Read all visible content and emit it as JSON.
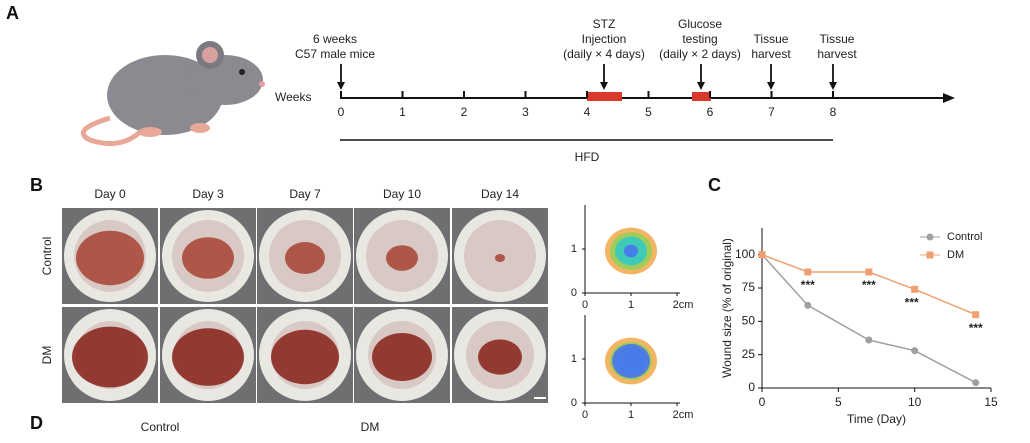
{
  "panel_a": {
    "label": "A",
    "weeks_label": "Weeks",
    "weeks": [
      "0",
      "1",
      "2",
      "3",
      "4",
      "5",
      "6",
      "7",
      "8"
    ],
    "events": [
      [
        "6 weeks",
        "C57 male mice"
      ],
      [
        "STZ",
        "Injection",
        "(daily × 4 days)"
      ],
      [
        "Glucose",
        "testing",
        "(daily × 2 days)"
      ],
      [
        "Tissue",
        "harvest"
      ],
      [
        "Tissue",
        "harvest"
      ]
    ],
    "diet": "HFD"
  },
  "panel_b": {
    "label": "B",
    "days": [
      "Day 0",
      "Day 3",
      "Day 7",
      "Day 10",
      "Day 14"
    ],
    "groups": [
      "Control",
      "DM"
    ],
    "map_xticks": [
      "0",
      "1",
      "2cm"
    ],
    "map_yticks": [
      "0",
      "1"
    ]
  },
  "panel_d": {
    "label": "D",
    "groups": [
      "Control",
      "DM"
    ]
  },
  "chart_data": {
    "type": "line",
    "panel": "C",
    "xlabel": "Time (Day)",
    "ylabel": "Wound size (% of original)",
    "x": [
      0,
      3,
      7,
      10,
      14
    ],
    "series": [
      {
        "name": "Control",
        "color": "#a0a0a0",
        "values": [
          100,
          62,
          36,
          28,
          4
        ]
      },
      {
        "name": "DM",
        "color": "#f0a070",
        "values": [
          100,
          87,
          87,
          74,
          55
        ]
      }
    ],
    "annotations": [
      "***",
      "***",
      "***",
      "***"
    ],
    "xlim": [
      0,
      15
    ],
    "xticks": [
      0,
      5,
      10,
      15
    ],
    "ylim": [
      0,
      120
    ],
    "yticks": [
      0,
      25,
      50,
      75,
      100
    ],
    "legend": "upper right"
  }
}
